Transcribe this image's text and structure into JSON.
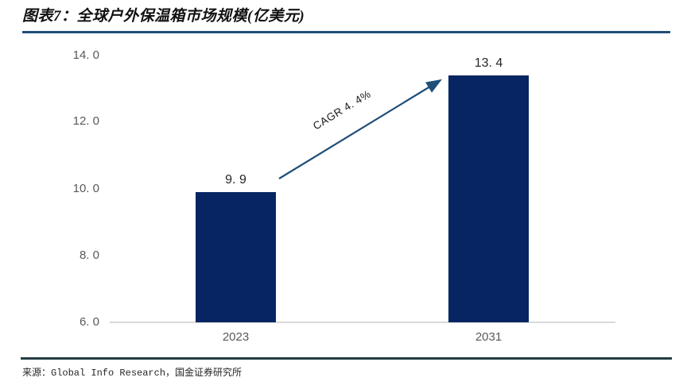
{
  "header": {
    "title": "图表7：全球户外保温箱市场规模(亿美元)"
  },
  "chart_data": {
    "type": "bar",
    "title": "全球户外保温箱市场规模(亿美元)",
    "categories": [
      "2023",
      "2031"
    ],
    "values": [
      9.9,
      13.4
    ],
    "ylim": [
      6.0,
      14.0
    ],
    "y_tick_values": [
      6.0,
      8.0,
      10.0,
      12.0,
      14.0
    ],
    "grid": false,
    "legend": "none",
    "annotation": "CAGR 4.4%",
    "unit": "亿美元"
  },
  "display": {
    "y_tick_labels": [
      "14. 0",
      "12. 0",
      "10. 0",
      "8. 0",
      "6. 0"
    ],
    "value_labels": [
      "9. 9",
      "13. 4"
    ],
    "cagr_label": "CAGR 4. 4%"
  },
  "colors": {
    "bar_fill": "#062562",
    "arrow": "#1f4e79",
    "title_rule": "#1f4e79",
    "bottom_rule": "#223c44",
    "axis_line": "#d9d9d9",
    "tick_text": "#595959"
  },
  "footer": {
    "source": "来源：Global Info Research，国金证券研究所"
  }
}
